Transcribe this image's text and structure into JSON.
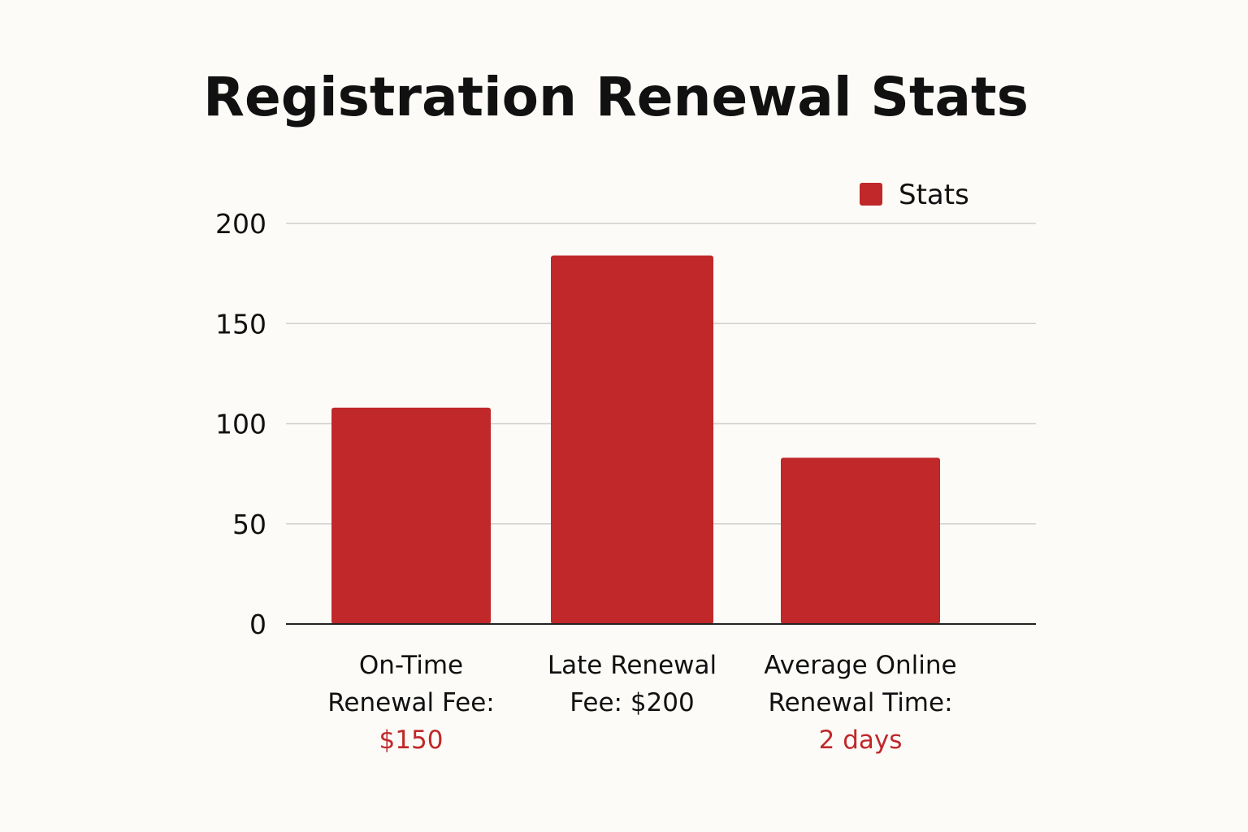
{
  "chart_data": {
    "type": "bar",
    "title": "Registration Renewal Stats",
    "xlabel": "",
    "ylabel": "",
    "ylim": [
      0,
      200
    ],
    "yticks": [
      0,
      50,
      100,
      150,
      200
    ],
    "grid": true,
    "legend_position": "top-right",
    "categories": [
      {
        "lines": [
          "On-Time",
          "Renewal Fee:"
        ],
        "highlight": "$150"
      },
      {
        "lines": [
          "Late Renewal",
          "Fee: $200"
        ],
        "highlight": ""
      },
      {
        "lines": [
          "Average Online",
          "Renewal Time:"
        ],
        "highlight": "2 days"
      }
    ],
    "series": [
      {
        "name": "Stats",
        "values": [
          108,
          184,
          83
        ],
        "color": "#c0282a"
      }
    ],
    "colors": {
      "bar": "#c0282a",
      "highlight_text": "#c0282a",
      "background": "#fcfbf7"
    }
  }
}
